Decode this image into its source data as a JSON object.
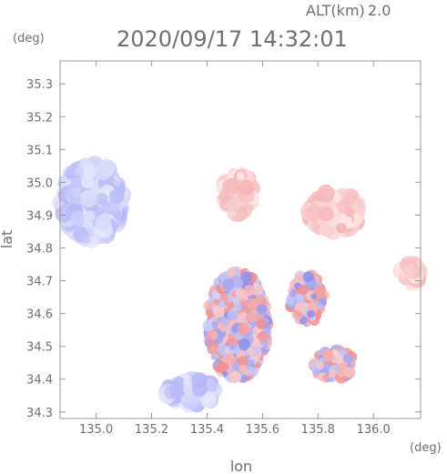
{
  "header": {
    "altitude_label": "ALT(km)",
    "altitude_value": "2.0",
    "timestamp": "2020/09/17 14:32:01"
  },
  "chart_data": {
    "type": "heatmap",
    "title": "2020/09/17 14:32:01",
    "xlabel": "lon",
    "ylabel": "lat",
    "x_unit": "(deg)",
    "y_unit": "(deg)",
    "xlim": [
      134.87,
      136.17
    ],
    "ylim": [
      34.28,
      35.37
    ],
    "x_ticks": [
      135.0,
      135.2,
      135.4,
      135.6,
      135.8,
      136.0
    ],
    "x_tick_labels": [
      "135.0",
      "135.2",
      "135.4",
      "135.6",
      "135.8",
      "136.0"
    ],
    "y_ticks": [
      34.3,
      34.4,
      34.5,
      34.6,
      34.7,
      34.8,
      34.9,
      35.0,
      35.1,
      35.2,
      35.3
    ],
    "y_tick_labels": [
      "34.3",
      "34.4",
      "34.5",
      "34.6",
      "34.7",
      "34.8",
      "34.9",
      "35.0",
      "35.1",
      "35.2",
      "35.3"
    ],
    "grid": false,
    "colors": {
      "positive": "#f08a8a",
      "negative": "#8a8ff0",
      "frame": "#9a9a9a"
    },
    "regions": [
      {
        "name": "west-coast-blue",
        "sign": "negative",
        "lon": [
          134.87,
          135.1
        ],
        "lat": [
          34.82,
          35.06
        ]
      },
      {
        "name": "osaka-bay-blue",
        "sign": "negative",
        "lon": [
          135.25,
          135.44
        ],
        "lat": [
          34.32,
          34.4
        ]
      },
      {
        "name": "north-center-red",
        "sign": "positive",
        "lon": [
          135.45,
          135.57
        ],
        "lat": [
          34.9,
          35.03
        ]
      },
      {
        "name": "northeast-red",
        "sign": "positive",
        "lon": [
          135.76,
          135.96
        ],
        "lat": [
          34.85,
          34.97
        ]
      },
      {
        "name": "east-edge-red",
        "sign": "positive",
        "lon": [
          136.1,
          136.17
        ],
        "lat": [
          34.69,
          34.76
        ]
      },
      {
        "name": "central-mixed",
        "sign": "mixed",
        "lon": [
          135.4,
          135.62
        ],
        "lat": [
          34.4,
          34.73
        ]
      },
      {
        "name": "east-center-mixed",
        "sign": "mixed",
        "lon": [
          135.7,
          135.82
        ],
        "lat": [
          34.57,
          34.72
        ]
      },
      {
        "name": "southeast-mixed",
        "sign": "mixed",
        "lon": [
          135.78,
          135.93
        ],
        "lat": [
          34.4,
          34.49
        ]
      }
    ]
  }
}
